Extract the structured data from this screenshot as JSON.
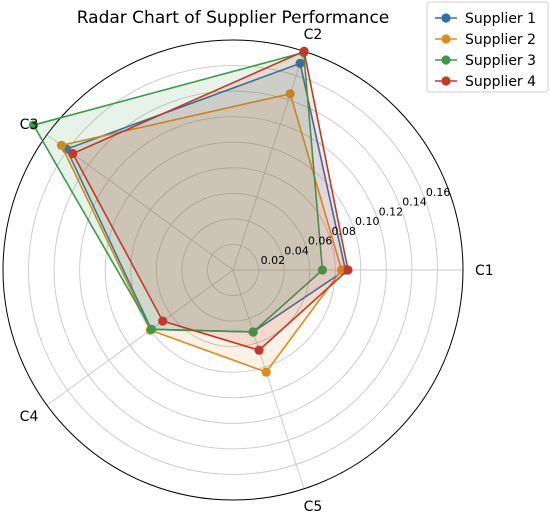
{
  "chart_data": {
    "type": "radar",
    "title": "Radar Chart of Supplier Performance",
    "axes": [
      "C1",
      "C2",
      "C3",
      "C4",
      "C5"
    ],
    "rlim": [
      0,
      0.18
    ],
    "r_ticks": [
      0.02,
      0.04,
      0.06,
      0.08,
      0.1,
      0.12,
      0.14,
      0.16
    ],
    "r_tick_labels": [
      "0.02",
      "0.04",
      "0.06",
      "0.08",
      "0.10",
      "0.12",
      "0.14",
      "0.16"
    ],
    "grid": true,
    "legend_position": "top-right",
    "series": [
      {
        "name": "Supplier 1",
        "color": "#2f6fb0",
        "values": [
          0.088,
          0.17,
          0.161,
          0.079,
          0.051
        ]
      },
      {
        "name": "Supplier 2",
        "color": "#e08a1e",
        "values": [
          0.085,
          0.145,
          0.166,
          0.08,
          0.084
        ]
      },
      {
        "name": "Supplier 3",
        "color": "#3b9a48",
        "values": [
          0.07,
          0.179,
          0.193,
          0.079,
          0.051
        ]
      },
      {
        "name": "Supplier 4",
        "color": "#c0392b",
        "values": [
          0.09,
          0.18,
          0.155,
          0.068,
          0.066
        ]
      }
    ]
  }
}
